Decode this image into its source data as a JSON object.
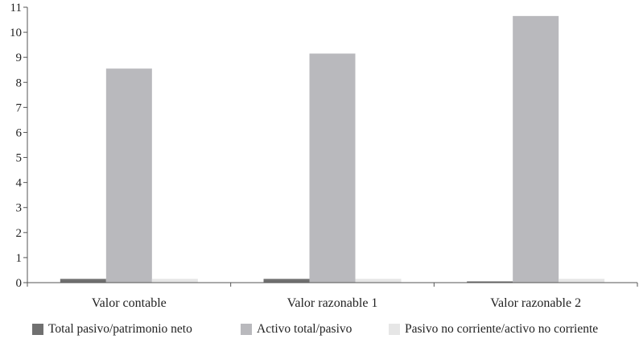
{
  "chart_data": {
    "type": "bar",
    "categories": [
      "Valor contable",
      "Valor razonable 1",
      "Valor razonable 2"
    ],
    "series": [
      {
        "name": "Total pasivo/patrimonio neto",
        "values": [
          0.15,
          0.15,
          0.05
        ],
        "color": "#707070"
      },
      {
        "name": "Activo total/pasivo",
        "values": [
          8.55,
          9.15,
          10.65
        ],
        "color": "#b9b9bd"
      },
      {
        "name": "Pasivo no corriente/activo no corriente",
        "values": [
          0.15,
          0.15,
          0.15
        ],
        "color": "#e6e6e6"
      }
    ],
    "ylim": [
      0,
      11
    ],
    "yticks": [
      "0",
      "1",
      "2",
      "3",
      "4",
      "5",
      "6",
      "7",
      "8",
      "9",
      "10",
      "11"
    ],
    "grid": false,
    "legend_position": "bottom"
  }
}
